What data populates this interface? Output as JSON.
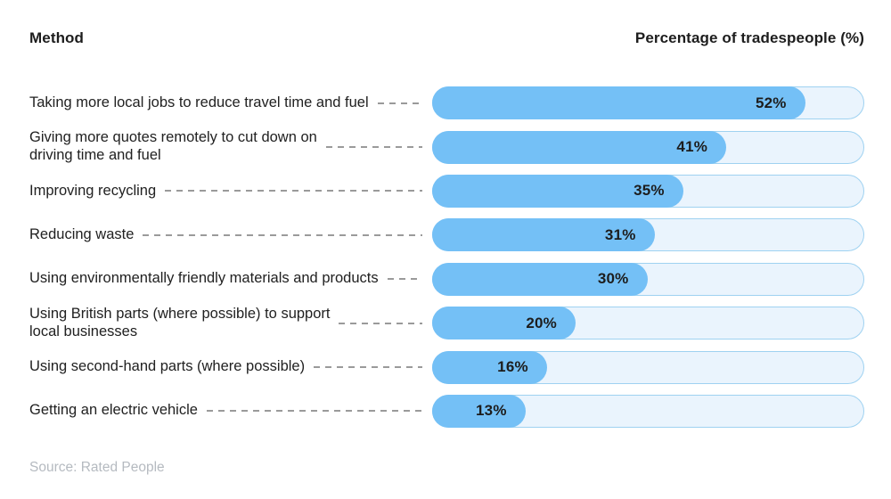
{
  "header": {
    "left": "Method",
    "right": "Percentage of tradespeople (%)"
  },
  "source": "Source: Rated People",
  "colors": {
    "bar_fill": "#74c0f6",
    "bar_track": "#eaf4fd",
    "bar_border": "#9fd2f1",
    "dash": "#9a9a9a"
  },
  "chart_data": {
    "type": "bar",
    "orientation": "horizontal",
    "title": "",
    "xlabel": "Percentage of tradespeople (%)",
    "ylabel": "Method",
    "xlim": [
      0,
      60
    ],
    "grid": false,
    "legend": false,
    "categories": [
      "Taking more local jobs to reduce travel time and fuel",
      "Giving more quotes remotely to cut down on\ndriving time and fuel",
      "Improving recycling",
      "Reducing waste",
      "Using environmentally friendly materials and products",
      "Using British parts (where possible) to support\nlocal businesses",
      "Using second-hand parts (where possible)",
      "Getting an electric vehicle"
    ],
    "values": [
      52,
      41,
      35,
      31,
      30,
      20,
      16,
      13
    ],
    "value_labels": [
      "52%",
      "41%",
      "35%",
      "31%",
      "30%",
      "20%",
      "16%",
      "13%"
    ],
    "source": "Source: Rated People"
  }
}
